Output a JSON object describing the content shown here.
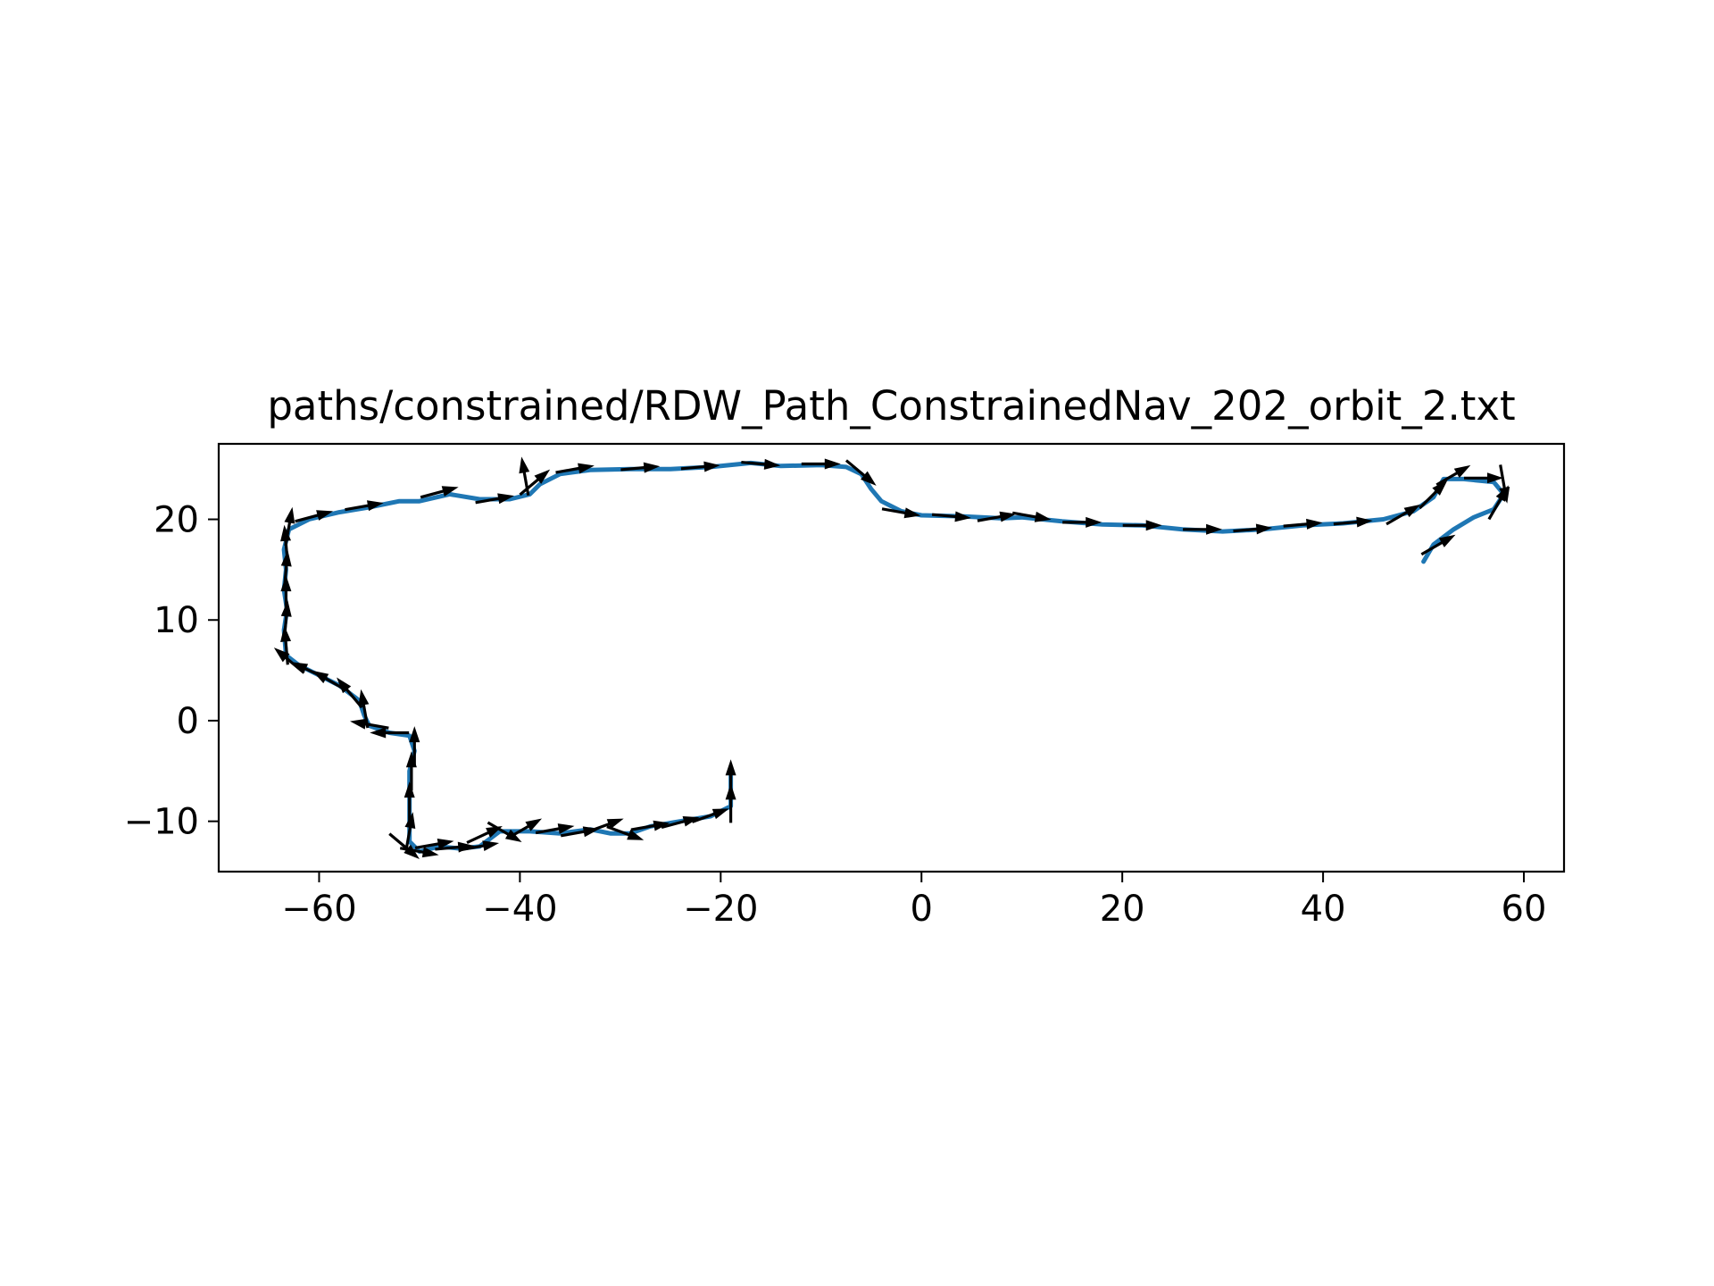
{
  "chart_data": {
    "type": "line",
    "title": "paths/constrained/RDW_Path_ConstrainedNav_202_orbit_2.txt",
    "xlabel": "",
    "ylabel": "",
    "xlim": [
      -70,
      64
    ],
    "ylim": [
      -15,
      27.5
    ],
    "xticks": [
      -60,
      -40,
      -20,
      0,
      20,
      40,
      60
    ],
    "xtick_labels": [
      "−60",
      "−40",
      "−20",
      "0",
      "20",
      "40",
      "60"
    ],
    "yticks": [
      -10,
      0,
      10,
      20
    ],
    "ytick_labels": [
      "−10",
      "0",
      "10",
      "20"
    ],
    "grid": false,
    "legend": "none",
    "line_color": "#1f77b4",
    "arrow_color": "#000000",
    "path": [
      [
        -19,
        -5.5
      ],
      [
        -19,
        -8.5
      ],
      [
        -21,
        -9.5
      ],
      [
        -24,
        -10
      ],
      [
        -27,
        -10.5
      ],
      [
        -29,
        -11.2
      ],
      [
        -31,
        -11.2
      ],
      [
        -33,
        -10.8
      ],
      [
        -36,
        -11.2
      ],
      [
        -39,
        -11
      ],
      [
        -42,
        -11
      ],
      [
        -44,
        -12.5
      ],
      [
        -46,
        -12.7
      ],
      [
        -48,
        -12.5
      ],
      [
        -50,
        -13
      ],
      [
        -51,
        -12
      ],
      [
        -51,
        -9
      ],
      [
        -51,
        -5
      ],
      [
        -50.5,
        -3
      ],
      [
        -51,
        -1.5
      ],
      [
        -53,
        -1.2
      ],
      [
        -55,
        -0.5
      ],
      [
        -55.5,
        0.5
      ],
      [
        -56,
        2
      ],
      [
        -58,
        3.5
      ],
      [
        -60,
        4.5
      ],
      [
        -62,
        5.5
      ],
      [
        -63.3,
        6.5
      ],
      [
        -63.5,
        9
      ],
      [
        -63.2,
        11
      ],
      [
        -63.5,
        13
      ],
      [
        -63.3,
        15
      ],
      [
        -63.5,
        17
      ],
      [
        -63,
        19
      ],
      [
        -61,
        20
      ],
      [
        -58,
        20.7
      ],
      [
        -55,
        21.2
      ],
      [
        -52,
        21.8
      ],
      [
        -50,
        21.8
      ],
      [
        -47,
        22.5
      ],
      [
        -44,
        22
      ],
      [
        -41,
        22
      ],
      [
        -39,
        22.5
      ],
      [
        -38,
        23.5
      ],
      [
        -36,
        24.5
      ],
      [
        -33,
        24.9
      ],
      [
        -29,
        25
      ],
      [
        -25,
        25
      ],
      [
        -21,
        25.2
      ],
      [
        -17,
        25.6
      ],
      [
        -14,
        25.3
      ],
      [
        -10,
        25.4
      ],
      [
        -7.5,
        25.2
      ],
      [
        -6,
        24.5
      ],
      [
        -5,
        23
      ],
      [
        -4,
        21.8
      ],
      [
        -2,
        20.8
      ],
      [
        0,
        20.4
      ],
      [
        4,
        20.3
      ],
      [
        8,
        20.1
      ],
      [
        10,
        20.2
      ],
      [
        14,
        19.8
      ],
      [
        18,
        19.5
      ],
      [
        22,
        19.4
      ],
      [
        26,
        19
      ],
      [
        30,
        18.8
      ],
      [
        34,
        19
      ],
      [
        38,
        19.4
      ],
      [
        42,
        19.6
      ],
      [
        46,
        20
      ],
      [
        49,
        20.8
      ],
      [
        51,
        22.2
      ],
      [
        52,
        24
      ],
      [
        54,
        24
      ],
      [
        57,
        23.7
      ],
      [
        58,
        22.5
      ],
      [
        57,
        21
      ],
      [
        55,
        20.2
      ],
      [
        53,
        19
      ],
      [
        51,
        17.5
      ],
      [
        50,
        15.8
      ]
    ],
    "arrows": [
      [
        -19,
        -5.8,
        90
      ],
      [
        -19,
        -8.2,
        90
      ],
      [
        -21,
        -9.4,
        20
      ],
      [
        -24,
        -10.1,
        15
      ],
      [
        -27,
        -10.5,
        10
      ],
      [
        -29.5,
        -11.2,
        -20
      ],
      [
        -31.5,
        -10.4,
        20
      ],
      [
        -34,
        -11.1,
        10
      ],
      [
        -36.5,
        -10.8,
        10
      ],
      [
        -39.5,
        -10.7,
        30
      ],
      [
        -41.5,
        -11.1,
        -30
      ],
      [
        -43.5,
        -11.3,
        25
      ],
      [
        -44,
        -12.5,
        10
      ],
      [
        -46.5,
        -12.6,
        5
      ],
      [
        -48.5,
        -12.3,
        10
      ],
      [
        -50,
        -13,
        -10
      ],
      [
        -51.5,
        -12.5,
        -40
      ],
      [
        -51,
        -11,
        80
      ],
      [
        -51,
        -8,
        90
      ],
      [
        -50.8,
        -5,
        90
      ],
      [
        -50.5,
        -2.5,
        90
      ],
      [
        -53,
        -1.2,
        180
      ],
      [
        -55,
        -0.4,
        170
      ],
      [
        -55.5,
        1.2,
        100
      ],
      [
        -57,
        2.8,
        130
      ],
      [
        -59,
        4,
        150
      ],
      [
        -61,
        5,
        155
      ],
      [
        -63,
        6,
        140
      ],
      [
        -63.3,
        7.5,
        95
      ],
      [
        -63.3,
        10,
        85
      ],
      [
        -63.3,
        12.5,
        90
      ],
      [
        -63.3,
        15,
        85
      ],
      [
        -63.3,
        17.5,
        95
      ],
      [
        -63,
        19.3,
        80
      ],
      [
        -60.5,
        20.3,
        15
      ],
      [
        -55.5,
        21.3,
        10
      ],
      [
        -48,
        22.7,
        15
      ],
      [
        -42.5,
        22,
        10
      ],
      [
        -39.5,
        24.3,
        100
      ],
      [
        -38.5,
        23.7,
        40
      ],
      [
        -34.5,
        25,
        10
      ],
      [
        -28,
        25.1,
        5
      ],
      [
        -22,
        25.2,
        5
      ],
      [
        -16,
        25.5,
        -5
      ],
      [
        -10,
        25.5,
        0
      ],
      [
        -6,
        24.6,
        -40
      ],
      [
        -2,
        20.7,
        -10
      ],
      [
        3,
        20.3,
        -5
      ],
      [
        7.5,
        20.2,
        10
      ],
      [
        11,
        20.3,
        -10
      ],
      [
        16,
        19.7,
        0
      ],
      [
        22,
        19.4,
        0
      ],
      [
        28,
        19,
        0
      ],
      [
        33,
        19,
        5
      ],
      [
        38,
        19.5,
        5
      ],
      [
        43,
        19.7,
        5
      ],
      [
        48,
        20.5,
        30
      ],
      [
        51,
        22.5,
        45
      ],
      [
        53,
        24.4,
        30
      ],
      [
        56,
        24.1,
        0
      ],
      [
        58,
        23.5,
        -80
      ],
      [
        57.5,
        21.7,
        60
      ],
      [
        51.5,
        17.5,
        30
      ]
    ]
  }
}
